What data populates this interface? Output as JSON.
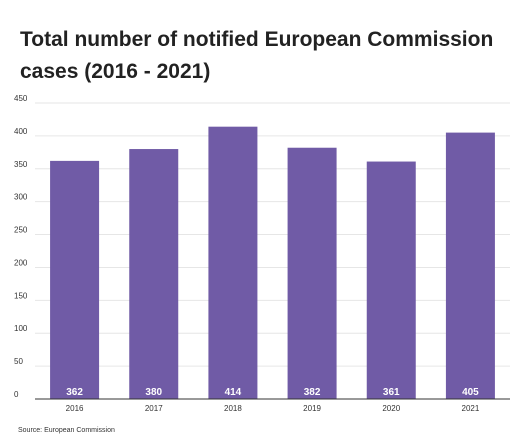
{
  "title": "Total number of notified European Commission cases (2016 - 2021)",
  "source": "Source: European Commission",
  "colors": {
    "bar": "#705ba6",
    "grid": "#e6e6e6",
    "axis": "#333333",
    "label": "#ffffff"
  },
  "chart_data": {
    "type": "bar",
    "title": "Total number of notified European Commission cases (2016 - 2021)",
    "xlabel": "",
    "ylabel": "",
    "categories": [
      "2016",
      "2017",
      "2018",
      "2019",
      "2020",
      "2021"
    ],
    "values": [
      362,
      380,
      414,
      382,
      361,
      405
    ],
    "data_labels": [
      "362",
      "380",
      "414",
      "382",
      "361",
      "405"
    ],
    "y_ticks": [
      "0",
      "50",
      "100",
      "150",
      "200",
      "250",
      "300",
      "350",
      "400",
      "450"
    ],
    "ylim": [
      0,
      450
    ],
    "grid": true,
    "legend": "none"
  }
}
